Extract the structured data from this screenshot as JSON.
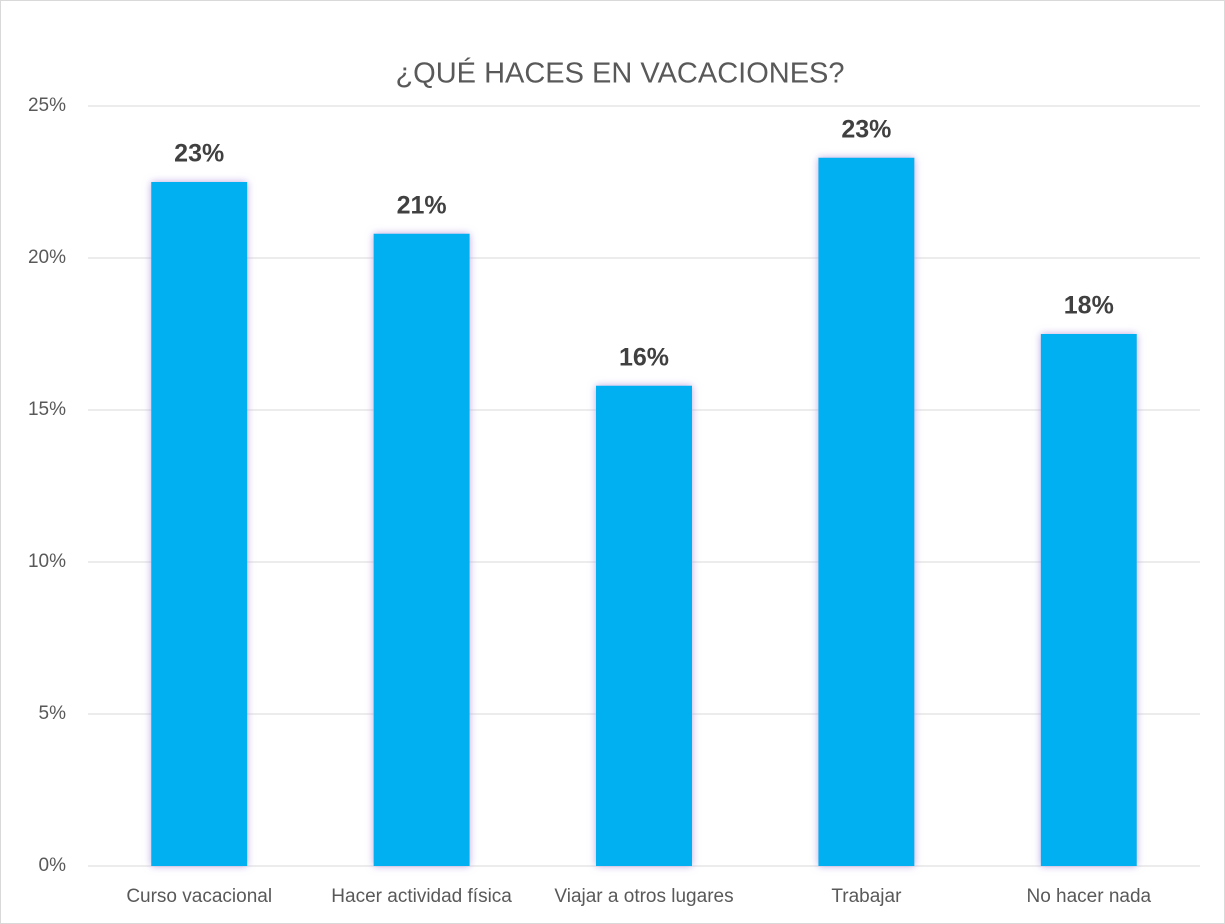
{
  "chart_data": {
    "type": "bar",
    "title": "¿QUÉ HACES EN VACACIONES?",
    "categories": [
      "Curso vacacional",
      "Hacer actividad física",
      "Viajar a otros lugares",
      "Trabajar",
      "No hacer nada"
    ],
    "values": [
      22.5,
      20.8,
      15.8,
      23.3,
      17.5
    ],
    "value_labels": [
      "23%",
      "21%",
      "16%",
      "23%",
      "18%"
    ],
    "color": "#00b0f0",
    "ylim": [
      0,
      25
    ],
    "yticks": [
      {
        "value": 0,
        "label": "0%"
      },
      {
        "value": 5,
        "label": "5%"
      },
      {
        "value": 10,
        "label": "10%"
      },
      {
        "value": 15,
        "label": "15%"
      },
      {
        "value": 20,
        "label": "20%"
      },
      {
        "value": 25,
        "label": "25%"
      }
    ],
    "grid": true
  }
}
